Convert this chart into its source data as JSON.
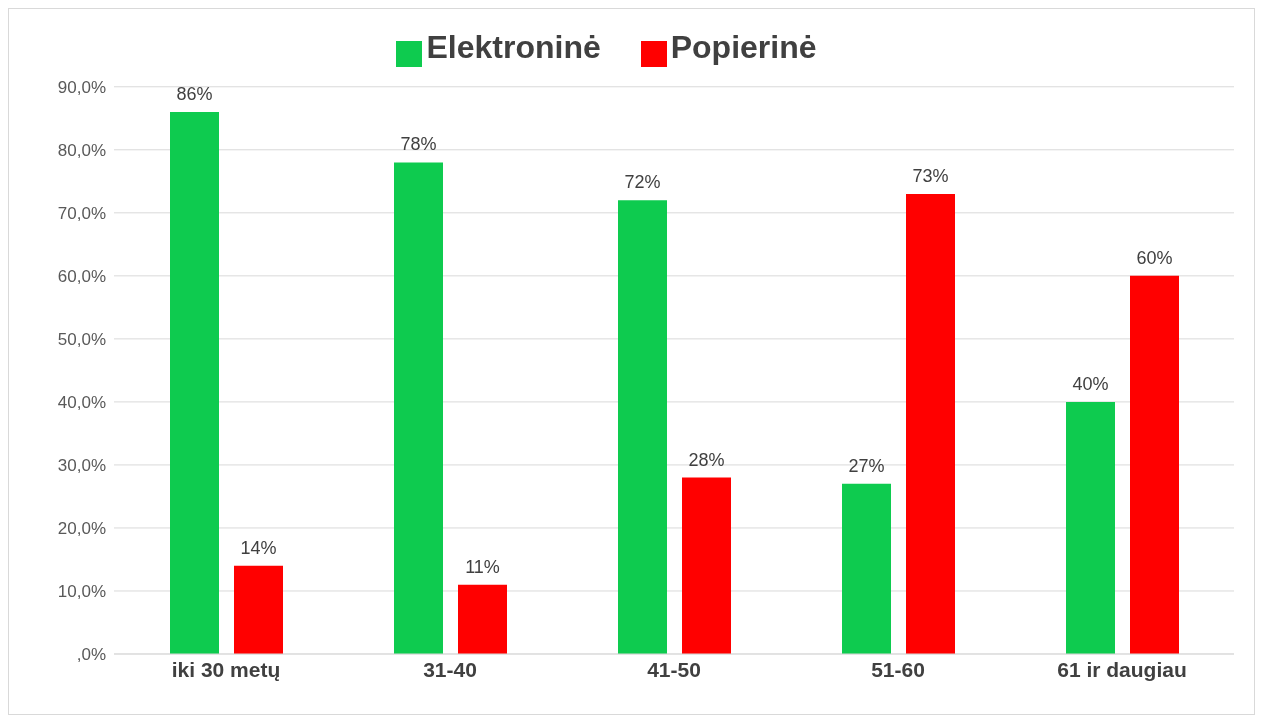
{
  "chart_data": {
    "type": "bar",
    "categories": [
      "iki 30 metų",
      "31-40",
      "41-50",
      "51-60",
      "61 ir daugiau"
    ],
    "series": [
      {
        "name": "Elektroninė",
        "color": "#0ecb4f",
        "values": [
          86,
          78,
          72,
          27,
          40
        ],
        "value_labels": [
          "86%",
          "78%",
          "72%",
          "27%",
          "40%"
        ]
      },
      {
        "name": "Popierinė",
        "color": "#ff0000",
        "values": [
          14,
          11,
          28,
          73,
          60
        ],
        "value_labels": [
          "14%",
          "11%",
          "28%",
          "73%",
          "60%"
        ]
      }
    ],
    "ylim": [
      0,
      90
    ],
    "yticks": [
      {
        "value": 0,
        "label": ",0%"
      },
      {
        "value": 10,
        "label": "10,0%"
      },
      {
        "value": 20,
        "label": "20,0%"
      },
      {
        "value": 30,
        "label": "30,0%"
      },
      {
        "value": 40,
        "label": "40,0%"
      },
      {
        "value": 50,
        "label": "50,0%"
      },
      {
        "value": 60,
        "label": "60,0%"
      },
      {
        "value": 70,
        "label": "70,0%"
      },
      {
        "value": 80,
        "label": "80,0%"
      },
      {
        "value": 90,
        "label": "90,0%"
      }
    ],
    "grid": "y",
    "legend": "top"
  }
}
